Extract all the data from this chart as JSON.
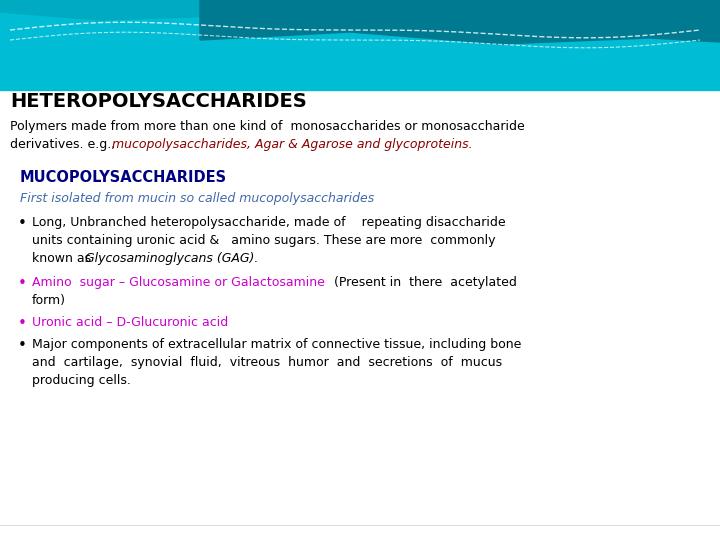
{
  "bg_color": "#ffffff",
  "black_color": "#000000",
  "red_color": "#8b0000",
  "magenta_color": "#cc00cc",
  "navy_color": "#000080",
  "teal_dark": "#008b8b",
  "subtitle_italic_color": "#4169aa",
  "wave_colors": [
    "#00c8d8",
    "#00b4c8",
    "#009ab0",
    "#007a90"
  ],
  "title": "HETEROPOLYSACCHARIDES",
  "section_title": "MUCOPOLYSACCHARIDES",
  "section_subtitle": "First isolated from mucin so called mucopolysaccharides"
}
